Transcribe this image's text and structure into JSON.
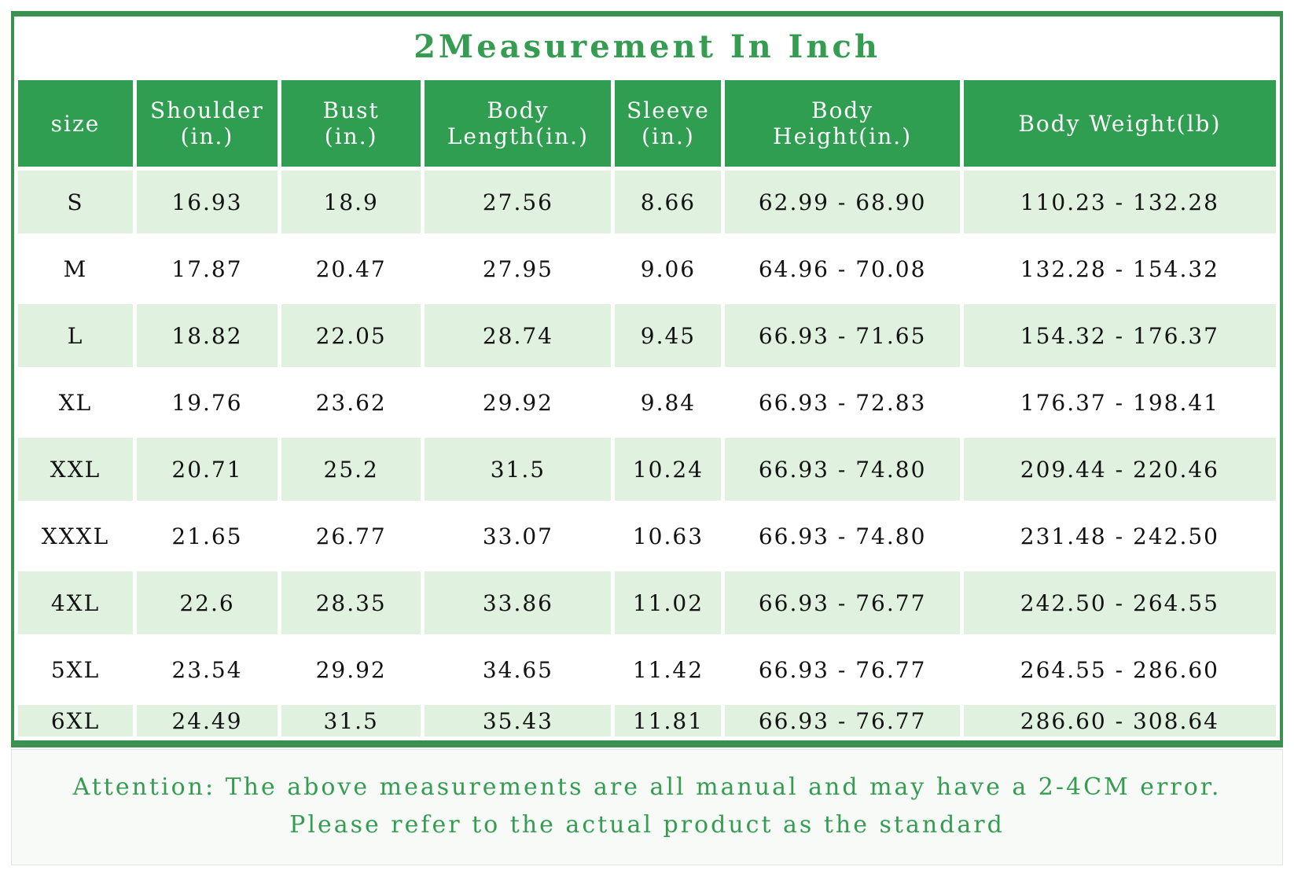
{
  "title": "2Measurement In Inch",
  "chart_data": {
    "type": "table",
    "title": "2Measurement In Inch",
    "columns": [
      "size",
      "Shoulder\n(in.)",
      "Bust\n(in.)",
      "Body\nLength(in.)",
      "Sleeve\n(in.)",
      "Body\nHeight(in.)",
      "Body Weight(lb)"
    ],
    "rows": [
      {
        "size": "S",
        "values": [
          "16.93",
          "18.9",
          "27.56",
          "8.66",
          "62.99 - 68.90",
          "110.23 - 132.28"
        ]
      },
      {
        "size": "M",
        "values": [
          "17.87",
          "20.47",
          "27.95",
          "9.06",
          "64.96 - 70.08",
          "132.28 - 154.32"
        ]
      },
      {
        "size": "L",
        "values": [
          "18.82",
          "22.05",
          "28.74",
          "9.45",
          "66.93 - 71.65",
          "154.32 - 176.37"
        ]
      },
      {
        "size": "XL",
        "values": [
          "19.76",
          "23.62",
          "29.92",
          "9.84",
          "66.93 - 72.83",
          "176.37 - 198.41"
        ]
      },
      {
        "size": "XXL",
        "values": [
          "20.71",
          "25.2",
          "31.5",
          "10.24",
          "66.93 - 74.80",
          "209.44 - 220.46"
        ]
      },
      {
        "size": "XXXL",
        "values": [
          "21.65",
          "26.77",
          "33.07",
          "10.63",
          "66.93 - 74.80",
          "231.48 - 242.50"
        ]
      },
      {
        "size": "4XL",
        "values": [
          "22.6",
          "28.35",
          "33.86",
          "11.02",
          "66.93 - 76.77",
          "242.50 - 264.55"
        ]
      },
      {
        "size": "5XL",
        "values": [
          "23.54",
          "29.92",
          "34.65",
          "11.42",
          "66.93 - 76.77",
          "264.55 - 286.60"
        ]
      },
      {
        "size": "6XL",
        "values": [
          "24.49",
          "31.5",
          "35.43",
          "11.81",
          "66.93 - 76.77",
          "286.60 - 308.64"
        ]
      }
    ],
    "column_widths_percent": [
      9.3,
      11.4,
      11.3,
      15.1,
      8.6,
      19.0,
      25.3
    ]
  },
  "footer": {
    "line1": "Attention: The above measurements are all manual and may have a 2-4CM error.",
    "line2": "Please refer to the actual product as the standard"
  },
  "colors": {
    "header_green": "#2f9e50",
    "row_green": "#e0f1e0",
    "border_green": "#3d9150",
    "text_green": "#359c52"
  }
}
